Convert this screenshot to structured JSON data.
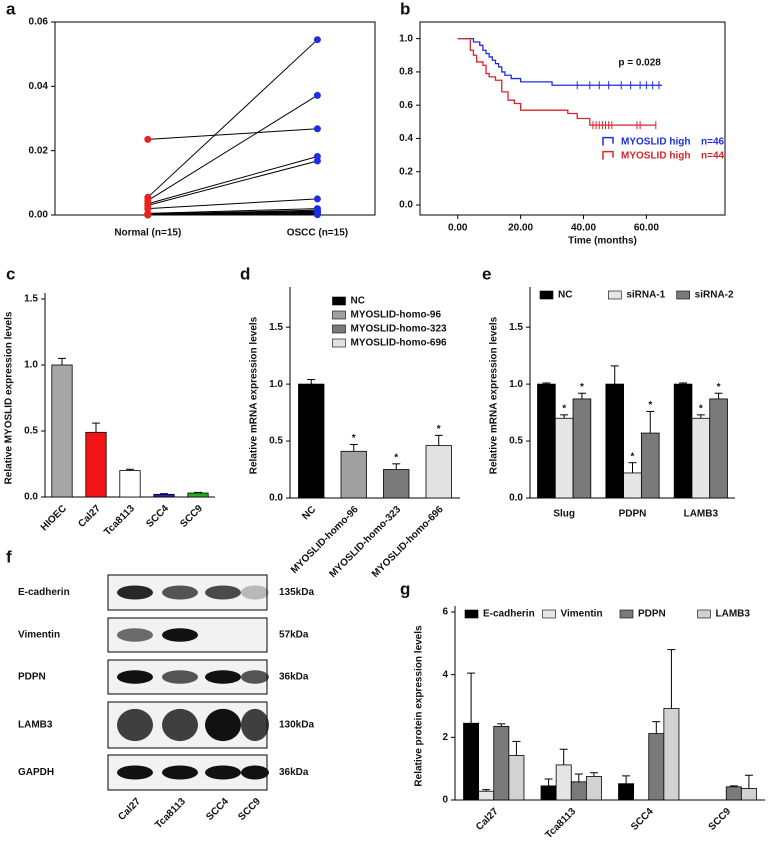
{
  "chart_data": [
    {
      "type": "paired_dot",
      "label": "a",
      "categories": [
        "Normal (n=15)",
        "OSCC (n=15)"
      ],
      "normal": [
        0.0235,
        0.0055,
        0.0045,
        0.0035,
        0.003,
        0.002,
        0.0005,
        0.0003,
        0.0002,
        0.0002,
        0.0001,
        0.0001,
        0.0001,
        0,
        0
      ],
      "oscc": [
        0.0268,
        0.0545,
        0.0372,
        0.0182,
        0.0168,
        0.005,
        0.002,
        0.0015,
        0.0012,
        0.001,
        0.0008,
        0.0005,
        0.0003,
        0.0002,
        0.0001
      ],
      "colors": [
        "#e8231f",
        "#1f2de0"
      ],
      "ylim": [
        0,
        0.06
      ],
      "yticks": [
        {
          "value": 0,
          "label": "0.00"
        },
        0.02,
        0.04,
        0.06
      ]
    },
    {
      "type": "survival",
      "label": "b",
      "xlabel": "Time (months)",
      "annotation": "p = 0.028",
      "legend": "lower right",
      "xlim": [
        -12,
        85
      ],
      "xticks": [
        {
          "value": 0,
          "label": "0.00"
        },
        {
          "value": 20,
          "label": "20.00"
        },
        {
          "value": 40,
          "label": "40.00"
        },
        {
          "value": 60,
          "label": "60.00"
        }
      ],
      "ylim": [
        -0.06,
        1.1
      ],
      "yticks": [
        {
          "value": 0,
          "label": "0.0"
        },
        0.2,
        0.4,
        0.6,
        0.8,
        {
          "value": 1,
          "label": "1.0"
        }
      ],
      "series": [
        {
          "name": "MYOSLID high",
          "n": "n=46",
          "color": "#1f2de0",
          "x": [
            0,
            5,
            7,
            8,
            9,
            10,
            11,
            12,
            13,
            14,
            15,
            17,
            20,
            30,
            65
          ],
          "y": [
            1,
            0.98,
            0.96,
            0.93,
            0.91,
            0.89,
            0.87,
            0.85,
            0.83,
            0.8,
            0.78,
            0.76,
            0.74,
            0.72,
            0.72
          ],
          "censor": [
            38,
            42,
            45,
            48,
            52,
            55,
            58,
            60,
            62,
            64
          ]
        },
        {
          "name": "MYOSLID high",
          "n": "n=44",
          "color": "#d9262b",
          "x": [
            0,
            4,
            5,
            6,
            8,
            9,
            10,
            12,
            14,
            16,
            18,
            20,
            35,
            38,
            42,
            63
          ],
          "y": [
            1,
            0.93,
            0.9,
            0.86,
            0.84,
            0.79,
            0.77,
            0.75,
            0.68,
            0.63,
            0.61,
            0.57,
            0.55,
            0.52,
            0.48,
            0.48
          ],
          "censor": [
            43,
            44,
            45,
            46,
            47,
            48,
            49,
            57,
            58,
            63
          ]
        }
      ]
    },
    {
      "type": "bar",
      "label": "c",
      "ylabel": "Relative MYOSLID expression levels",
      "rotate_labels": true,
      "categories": [
        "HIOEC",
        "Cal27",
        "Tca8113",
        "SCC4",
        "SCC9"
      ],
      "values": [
        1.0,
        0.49,
        0.2,
        0.02,
        0.03
      ],
      "errors": [
        0.05,
        0.07,
        0.01,
        0.005,
        0.005
      ],
      "colors": [
        "#a6a6a6",
        "#f01414",
        "#ffffff",
        "#2323c8",
        "#22b022"
      ],
      "ylim": [
        0,
        1.5
      ],
      "yticks": [
        {
          "value": 0,
          "label": "0.0"
        },
        0.5,
        {
          "value": 1,
          "label": "1.0"
        },
        1.5
      ]
    },
    {
      "type": "bar",
      "label": "d",
      "ylabel": "Relative mRNA expression levels",
      "rotate_labels": true,
      "legend": "upper right",
      "categories": [
        "NC",
        "MYOSLID-homo-96",
        "MYOSLID-homo-323",
        "MYOSLID-homo-696"
      ],
      "values": [
        1.0,
        0.41,
        0.25,
        0.46
      ],
      "errors": [
        0.04,
        0.06,
        0.05,
        0.09
      ],
      "significance": [
        null,
        "*",
        "*",
        "*"
      ],
      "colors": [
        "#000000",
        "#a0a0a0",
        "#7a7a7a",
        "#e2e2e2"
      ],
      "ylim": [
        0,
        1.8
      ],
      "yticks": [
        {
          "value": 0,
          "label": "0.0"
        },
        0.5,
        {
          "value": 1,
          "label": "1.0"
        },
        1.5
      ]
    },
    {
      "type": "grouped_bar",
      "label": "e",
      "ylabel": "Relative mRNA expression levels",
      "rotate_labels": false,
      "categories": [
        "Slug",
        "PDPN",
        "LAMB3"
      ],
      "ylim": [
        0,
        1.8
      ],
      "yticks": [
        {
          "value": 0,
          "label": "0.0"
        },
        0.5,
        {
          "value": 1,
          "label": "1.0"
        },
        1.5
      ],
      "series": [
        {
          "name": "NC",
          "color": "#000000",
          "values": [
            1.0,
            1.0,
            1.0
          ],
          "errors": [
            0.01,
            0.16,
            0.01
          ]
        },
        {
          "name": "siRNA-1",
          "color": "#e6e6e6",
          "values": [
            0.7,
            0.22,
            0.7
          ],
          "errors": [
            0.03,
            0.09,
            0.03
          ],
          "significance": [
            "*",
            "*",
            "*"
          ]
        },
        {
          "name": "siRNA-2",
          "color": "#7a7a7a",
          "values": [
            0.87,
            0.57,
            0.87
          ],
          "errors": [
            0.05,
            0.19,
            0.05
          ],
          "significance": [
            "*",
            "*",
            "*"
          ]
        }
      ]
    },
    {
      "type": "western_blot",
      "label": "f",
      "lanes": [
        "Cal27",
        "Tca8113",
        "SCC4",
        "SCC9"
      ],
      "rows": [
        {
          "label": "E-cadherin",
          "size": "135kDa"
        },
        {
          "label": "Vimentin",
          "size": "57kDa"
        },
        {
          "label": "PDPN",
          "size": "36kDa"
        },
        {
          "label": "LAMB3",
          "size": "130kDa"
        },
        {
          "label": "GAPDH",
          "size": "36kDa"
        }
      ]
    },
    {
      "type": "grouped_bar",
      "label": "g",
      "ylabel": "Relative protein expression levels",
      "rotate_labels": true,
      "categories": [
        "Cal27",
        "Tca8113",
        "SCC4",
        "SCC9"
      ],
      "ylim": [
        0,
        6
      ],
      "yticks": [
        0,
        2,
        4,
        6
      ],
      "series": [
        {
          "name": "E-cadherin",
          "color": "#000000",
          "values": [
            2.45,
            0.45,
            0.52,
            0
          ],
          "errors": [
            1.6,
            0.22,
            0.25,
            0
          ]
        },
        {
          "name": "Vimentin",
          "color": "#e6e6e6",
          "values": [
            0.28,
            1.12,
            0,
            0
          ],
          "errors": [
            0.05,
            0.5,
            0,
            0
          ]
        },
        {
          "name": "PDPN",
          "color": "#7a7a7a",
          "values": [
            2.35,
            0.58,
            2.12,
            0.42
          ],
          "errors": [
            0.08,
            0.25,
            0.38,
            0.03
          ]
        },
        {
          "name": "LAMB3",
          "color": "#d2d2d2",
          "values": [
            1.42,
            0.75,
            2.92,
            0.37
          ],
          "errors": [
            0.45,
            0.12,
            1.88,
            0.42
          ]
        }
      ]
    }
  ]
}
